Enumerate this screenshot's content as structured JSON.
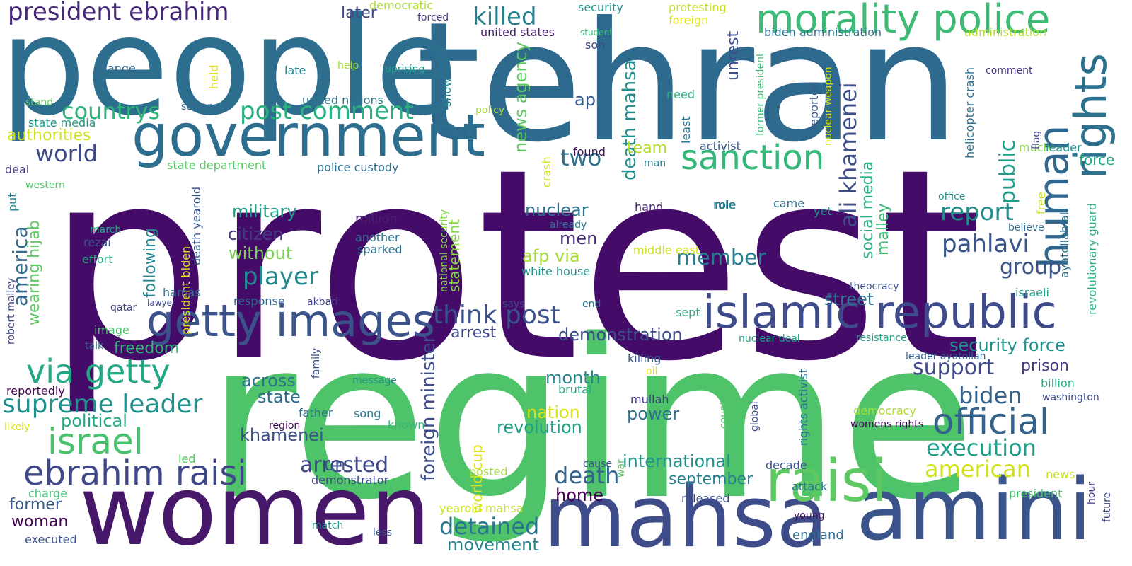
{
  "words": [
    {
      "text": "protest",
      "color": "#440c68"
    },
    {
      "text": "regime",
      "color": "#4fc369"
    },
    {
      "text": "tehran",
      "color": "#2e6a8e"
    },
    {
      "text": "people",
      "color": "#2d6e8e"
    },
    {
      "text": "women",
      "color": "#47186a"
    },
    {
      "text": "mahsa",
      "color": "#3e4c8a"
    },
    {
      "text": "amini",
      "color": "#3a538b"
    },
    {
      "text": "government",
      "color": "#2d6e8e"
    },
    {
      "text": "islamic republic",
      "color": "#3e4a89"
    },
    {
      "text": "morality police",
      "color": "#3eba76"
    },
    {
      "text": "raisi",
      "color": "#5ec962"
    },
    {
      "text": "getty images",
      "color": "#3b528b"
    },
    {
      "text": "rights",
      "color": "#2c728e"
    },
    {
      "text": "human",
      "color": "#31668e"
    },
    {
      "text": "ebrahim raisi",
      "color": "#3f4788"
    },
    {
      "text": "israel",
      "color": "#4ac16d"
    },
    {
      "text": "via getty",
      "color": "#22a785"
    },
    {
      "text": "sanction",
      "color": "#35b779"
    },
    {
      "text": "official",
      "color": "#33638d"
    },
    {
      "text": "supreme leader",
      "color": "#21918c"
    },
    {
      "text": "president ebrahim",
      "color": "#482979"
    },
    {
      "text": "killed",
      "color": "#27808e"
    },
    {
      "text": "think post",
      "color": "#3b528b"
    },
    {
      "text": "post comment",
      "color": "#2ab07f"
    },
    {
      "text": "countrys",
      "color": "#2fb47c"
    },
    {
      "text": "report",
      "color": "#21908d"
    },
    {
      "text": "pahlavi",
      "color": "#39568c"
    },
    {
      "text": "world",
      "color": "#3e4989"
    },
    {
      "text": "player",
      "color": "#23898e"
    },
    {
      "text": "arrested",
      "color": "#3e4989"
    },
    {
      "text": "detained",
      "color": "#2a768e"
    },
    {
      "text": "death",
      "color": "#32648e"
    },
    {
      "text": "american",
      "color": "#d0e11c"
    },
    {
      "text": "biden",
      "color": "#33638d"
    },
    {
      "text": "support",
      "color": "#3f4788"
    },
    {
      "text": "execution",
      "color": "#1f9e89"
    },
    {
      "text": "group",
      "color": "#3a548c"
    },
    {
      "text": "member",
      "color": "#287d8e"
    },
    {
      "text": "public",
      "color": "#1f9e89"
    },
    {
      "text": "two",
      "color": "#2c718e"
    },
    {
      "text": "america",
      "color": "#31688e"
    },
    {
      "text": "movement",
      "color": "#25848e"
    },
    {
      "text": "security force",
      "color": "#20928c"
    },
    {
      "text": "revolution",
      "color": "#1fa088"
    },
    {
      "text": "ali khamenei",
      "color": "#3d4e8a"
    },
    {
      "text": "death mahsa",
      "color": "#228d8d"
    },
    {
      "text": "news agency",
      "color": "#5ec962"
    },
    {
      "text": "foreign minister",
      "color": "#3e4c8a"
    },
    {
      "text": "demonstration",
      "color": "#3d4d8a"
    },
    {
      "text": "international",
      "color": "#20928c"
    },
    {
      "text": "military",
      "color": "#1f9e89"
    },
    {
      "text": "citizen",
      "color": "#443a83"
    },
    {
      "text": "without",
      "color": "#7ad151"
    },
    {
      "text": "nuclear",
      "color": "#2d708e"
    },
    {
      "text": "men",
      "color": "#472d7b"
    },
    {
      "text": "afp via",
      "color": "#a5db36"
    },
    {
      "text": "state",
      "color": "#2d708e"
    },
    {
      "text": "nation",
      "color": "#d8e219"
    },
    {
      "text": "power",
      "color": "#2d708e"
    },
    {
      "text": "khamenei",
      "color": "#3b528b"
    },
    {
      "text": "month",
      "color": "#23888e"
    },
    {
      "text": "street",
      "color": "#2d708e"
    },
    {
      "text": "prison",
      "color": "#433e85"
    },
    {
      "text": "arrest",
      "color": "#3f4788"
    },
    {
      "text": "across",
      "color": "#2c738e"
    },
    {
      "text": "september",
      "color": "#277f8e"
    },
    {
      "text": "social media",
      "color": "#2ab07f"
    },
    {
      "text": "malley",
      "color": "#3bbb75"
    },
    {
      "text": "statement",
      "color": "#86d549"
    },
    {
      "text": "world cup",
      "color": "#dde318"
    },
    {
      "text": "political",
      "color": "#22a785"
    },
    {
      "text": "freedom",
      "color": "#35b779"
    },
    {
      "text": "following",
      "color": "#24878e"
    },
    {
      "text": "wearing hijab",
      "color": "#5ec962"
    },
    {
      "text": "former",
      "color": "#38588c"
    },
    {
      "text": "woman",
      "color": "#450559"
    },
    {
      "text": "home",
      "color": "#440154"
    },
    {
      "text": "unrest",
      "color": "#3d4e8a"
    },
    {
      "text": "force",
      "color": "#22a785"
    },
    {
      "text": "team",
      "color": "#b5de2b"
    },
    {
      "text": "authorities",
      "color": "#d2e21b"
    },
    {
      "text": "un",
      "color": "#3b528b"
    },
    {
      "text": "ap",
      "color": "#39568c"
    },
    {
      "text": "later",
      "color": "#3f4788"
    },
    {
      "text": "change",
      "color": "#31668e"
    },
    {
      "text": "state media",
      "color": "#1e9b8a"
    },
    {
      "text": "united nations",
      "color": "#2a788e"
    },
    {
      "text": "united states",
      "color": "#481b6d"
    },
    {
      "text": "security",
      "color": "#20928c"
    },
    {
      "text": "protesting",
      "color": "#c8e020"
    },
    {
      "text": "democratic",
      "color": "#addc30"
    },
    {
      "text": "foreign",
      "color": "#e2e418"
    },
    {
      "text": "biden administration",
      "color": "#2c728e"
    },
    {
      "text": "administration",
      "color": "#b2dd2d"
    },
    {
      "text": "student",
      "color": "#3bbb75"
    },
    {
      "text": "son",
      "color": "#3e4a89"
    },
    {
      "text": "forced",
      "color": "#433e85"
    },
    {
      "text": "late",
      "color": "#26828e"
    },
    {
      "text": "uprising",
      "color": "#1fa088"
    },
    {
      "text": "help",
      "color": "#9bd93c"
    },
    {
      "text": "held",
      "color": "#e0e318"
    },
    {
      "text": "show",
      "color": "#24868e"
    },
    {
      "text": "policy",
      "color": "#addc30"
    },
    {
      "text": "senior",
      "color": "#31688e"
    },
    {
      "text": "stand",
      "color": "#5ec962"
    },
    {
      "text": "need",
      "color": "#2ab07f"
    },
    {
      "text": "comment",
      "color": "#46337f"
    },
    {
      "text": "found",
      "color": "#471164"
    },
    {
      "text": "activist",
      "color": "#38588c"
    },
    {
      "text": "man",
      "color": "#25848e"
    },
    {
      "text": "deal",
      "color": "#443983"
    },
    {
      "text": "state department",
      "color": "#58c765"
    },
    {
      "text": "police custody",
      "color": "#2e6e8e"
    },
    {
      "text": "western",
      "color": "#52c569"
    },
    {
      "text": "much",
      "color": "#84d44b"
    },
    {
      "text": "leader",
      "color": "#218e8d"
    },
    {
      "text": "flag",
      "color": "#414487"
    },
    {
      "text": "least",
      "color": "#2c718e"
    },
    {
      "text": "crash",
      "color": "#d2e21b"
    },
    {
      "text": "helicopter crash",
      "color": "#2c728e"
    },
    {
      "text": "reported",
      "color": "#38588c"
    },
    {
      "text": "nuclear weapon",
      "color": "#d8e219"
    },
    {
      "text": "former president",
      "color": "#3bbb75"
    },
    {
      "text": "put",
      "color": "#25838e"
    },
    {
      "text": "march",
      "color": "#26ad81"
    },
    {
      "text": "million",
      "color": "#481f70"
    },
    {
      "text": "another",
      "color": "#2c728e"
    },
    {
      "text": "sparked",
      "color": "#2c728e"
    },
    {
      "text": "role",
      "color": "#3d4e8a"
    },
    {
      "text": "rule",
      "color": "#20928c"
    },
    {
      "text": "came",
      "color": "#2e6e8e"
    },
    {
      "text": "yet",
      "color": "#1e9b8a"
    },
    {
      "text": "office",
      "color": "#21918c"
    },
    {
      "text": "believe",
      "color": "#2f6b8e"
    },
    {
      "text": "ayatollah ali",
      "color": "#2c728e"
    },
    {
      "text": "revolutionary guard",
      "color": "#2ab07f"
    },
    {
      "text": "free",
      "color": "#c2df23"
    },
    {
      "text": "hand",
      "color": "#482576"
    },
    {
      "text": "already",
      "color": "#2c728e"
    },
    {
      "text": "middle east",
      "color": "#d0e11c"
    },
    {
      "text": "white house",
      "color": "#21918c"
    },
    {
      "text": "rezai",
      "color": "#3b528b"
    },
    {
      "text": "effort",
      "color": "#27ad81"
    },
    {
      "text": "president biden",
      "color": "#d8e219"
    },
    {
      "text": "death yearold",
      "color": "#39568c"
    },
    {
      "text": "national security",
      "color": "#86d549"
    },
    {
      "text": "hamas",
      "color": "#2c728e"
    },
    {
      "text": "qatar",
      "color": "#404688"
    },
    {
      "text": "lawyer",
      "color": "#3e4a89"
    },
    {
      "text": "response",
      "color": "#33638d"
    },
    {
      "text": "akbari",
      "color": "#3f4788"
    },
    {
      "text": "says",
      "color": "#3e4c8a"
    },
    {
      "text": "end",
      "color": "#2c728e"
    },
    {
      "text": "sept",
      "color": "#2ab07f"
    },
    {
      "text": "theocracy",
      "color": "#3b528b"
    },
    {
      "text": "israeli",
      "color": "#1fa088"
    },
    {
      "text": "robert malley",
      "color": "#3e4989"
    },
    {
      "text": "image",
      "color": "#48c16e"
    },
    {
      "text": "talk",
      "color": "#31688e"
    },
    {
      "text": "family",
      "color": "#3b528b"
    },
    {
      "text": "killing",
      "color": "#38588c"
    },
    {
      "text": "oil",
      "color": "#e2e418"
    },
    {
      "text": "nuclear deal",
      "color": "#1fa088"
    },
    {
      "text": "resistance",
      "color": "#1f9e89"
    },
    {
      "text": "leader ayatollah",
      "color": "#33638d"
    },
    {
      "text": "billion",
      "color": "#27ad81"
    },
    {
      "text": "washington",
      "color": "#3e4c8a"
    },
    {
      "text": "reportedly",
      "color": "#440154"
    },
    {
      "text": "message",
      "color": "#20928c"
    },
    {
      "text": "brutal",
      "color": "#22a785"
    },
    {
      "text": "mullah",
      "color": "#433e85"
    },
    {
      "text": "rights activist",
      "color": "#2d708e"
    },
    {
      "text": "countries",
      "color": "#52c569"
    },
    {
      "text": "global",
      "color": "#3f4788"
    },
    {
      "text": "likely",
      "color": "#d8e219"
    },
    {
      "text": "father",
      "color": "#2c728e"
    },
    {
      "text": "song",
      "color": "#2c728e"
    },
    {
      "text": "known",
      "color": "#35b779"
    },
    {
      "text": "region",
      "color": "#450559"
    },
    {
      "text": "democracy",
      "color": "#addc30"
    },
    {
      "text": "womens rights",
      "color": "#46085c"
    },
    {
      "text": "led",
      "color": "#58c765"
    },
    {
      "text": "posted",
      "color": "#a5db36"
    },
    {
      "text": "cause",
      "color": "#3b528b"
    },
    {
      "text": "war",
      "color": "#58c765"
    },
    {
      "text": "decade",
      "color": "#3a538b"
    },
    {
      "text": "news",
      "color": "#c2df23"
    },
    {
      "text": "charge",
      "color": "#3bbb75"
    },
    {
      "text": "demonstrator",
      "color": "#3e4a89"
    },
    {
      "text": "yearold mahsa",
      "color": "#c8e020"
    },
    {
      "text": "released",
      "color": "#3e4c8a"
    },
    {
      "text": "attack",
      "color": "#2c728e"
    },
    {
      "text": "president",
      "color": "#48c16e"
    },
    {
      "text": "hour",
      "color": "#46337f"
    },
    {
      "text": "future",
      "color": "#3e4989"
    },
    {
      "text": "young",
      "color": "#481467"
    },
    {
      "text": "match",
      "color": "#21918c"
    },
    {
      "text": "less",
      "color": "#3b528b"
    },
    {
      "text": "executed",
      "color": "#3b528b"
    },
    {
      "text": "england",
      "color": "#2e6e8e"
    }
  ]
}
